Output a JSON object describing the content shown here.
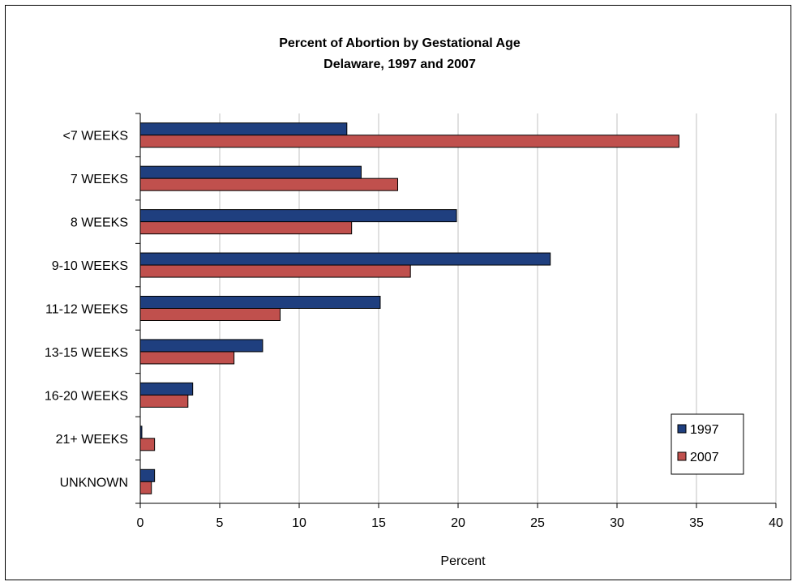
{
  "chart_data": {
    "type": "bar",
    "orientation": "horizontal",
    "title": "Percent of Abortion by Gestational Age",
    "subtitle": "Delaware, 1997 and 2007",
    "xlabel": "Percent",
    "ylabel": "",
    "categories": [
      "<7 WEEKS",
      "7 WEEKS",
      "8 WEEKS",
      "9-10 WEEKS",
      "11-12 WEEKS",
      "13-15 WEEKS",
      "16-20 WEEKS",
      "21+ WEEKS",
      "UNKNOWN"
    ],
    "series": [
      {
        "name": "1997",
        "color": "#1F3F7F",
        "values": [
          13.0,
          13.9,
          19.9,
          25.8,
          15.1,
          7.7,
          3.3,
          0.1,
          0.9
        ]
      },
      {
        "name": "2007",
        "color": "#C0504D",
        "values": [
          33.9,
          16.2,
          13.3,
          17.0,
          8.8,
          5.9,
          3.0,
          0.9,
          0.7
        ]
      }
    ],
    "xlim": [
      0,
      40
    ],
    "x_ticks": [
      "0",
      "5",
      "10",
      "15",
      "20",
      "25",
      "30",
      "35",
      "40"
    ],
    "grid": "vertical",
    "grid_color": "#C0C0C0",
    "legend_position": "bottom-right"
  }
}
